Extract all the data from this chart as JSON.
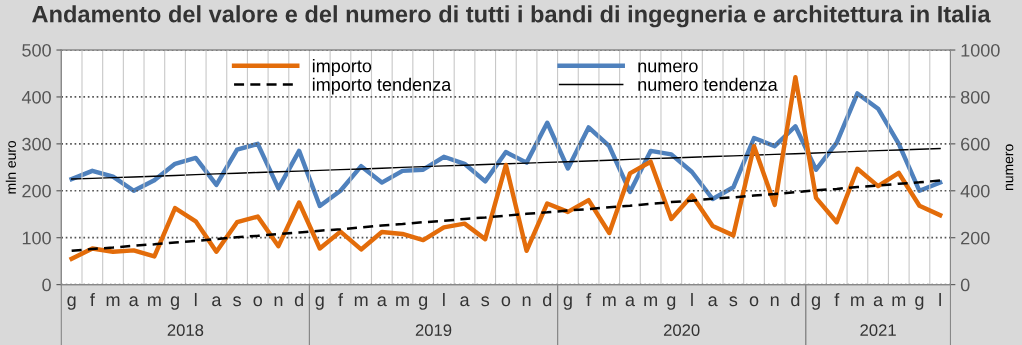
{
  "chart_data": {
    "type": "line",
    "title": "Andamento del valore e del numero di tutti i bandi di ingegneria e architettura in Italia",
    "categories": [
      "g",
      "f",
      "m",
      "a",
      "m",
      "g",
      "l",
      "a",
      "s",
      "o",
      "n",
      "d",
      "g",
      "f",
      "m",
      "a",
      "m",
      "g",
      "l",
      "a",
      "s",
      "o",
      "n",
      "d",
      "g",
      "f",
      "m",
      "a",
      "m",
      "g",
      "l",
      "a",
      "s",
      "o",
      "n",
      "d",
      "g",
      "f",
      "m",
      "a",
      "m",
      "g",
      "l"
    ],
    "annotations": [
      "2018",
      "2019",
      "2020",
      "2021"
    ],
    "series": [
      {
        "name": "importo",
        "color": "#e36c0a",
        "values": [
          55,
          77,
          70,
          73,
          60,
          163,
          135,
          70,
          133,
          145,
          82,
          175,
          77,
          113,
          75,
          112,
          108,
          95,
          122,
          130,
          97,
          255,
          72,
          173,
          155,
          180,
          110,
          237,
          262,
          140,
          190,
          125,
          105,
          295,
          170,
          442,
          185,
          133,
          247,
          210,
          238,
          168,
          148
        ]
      },
      {
        "name": "importo tendenza",
        "color": "#000000",
        "line_style": "dashed",
        "values": [
          72,
          76,
          79,
          83,
          86,
          90,
          93,
          97,
          101,
          104,
          108,
          111,
          115,
          118,
          122,
          126,
          129,
          133,
          136,
          140,
          143,
          147,
          151,
          154,
          158,
          161,
          165,
          168,
          172,
          176,
          179,
          183,
          186,
          190,
          193,
          197,
          201,
          204,
          208,
          211,
          215,
          218,
          222
        ]
      },
      {
        "name": "numero",
        "color": "#4f81bd",
        "axis": "y2",
        "values": [
          450,
          485,
          460,
          400,
          445,
          515,
          540,
          425,
          575,
          600,
          410,
          570,
          335,
          400,
          505,
          435,
          485,
          490,
          545,
          515,
          440,
          565,
          520,
          690,
          495,
          670,
          590,
          395,
          570,
          555,
          480,
          365,
          415,
          625,
          590,
          675,
          490,
          605,
          815,
          750,
          600,
          400,
          435
        ]
      },
      {
        "name": "numero tendenza",
        "color": "#000000",
        "line_style": "solid",
        "axis": "y2",
        "values": [
          450,
          453,
          456,
          459,
          462,
          465,
          469,
          472,
          475,
          478,
          481,
          484,
          487,
          490,
          493,
          496,
          500,
          503,
          506,
          509,
          512,
          515,
          518,
          521,
          524,
          527,
          530,
          534,
          537,
          540,
          543,
          546,
          549,
          552,
          555,
          558,
          561,
          565,
          568,
          571,
          574,
          577,
          580
        ]
      }
    ],
    "ylabel": "mln euro",
    "y2label": "numero",
    "ylim": [
      0,
      500
    ],
    "yticks": [
      0,
      100,
      200,
      300,
      400,
      500
    ],
    "y2lim": [
      0,
      1000
    ],
    "y2ticks": [
      0,
      200,
      400,
      600,
      800,
      1000
    ],
    "grid": true,
    "legend": "top",
    "marker": "none"
  }
}
